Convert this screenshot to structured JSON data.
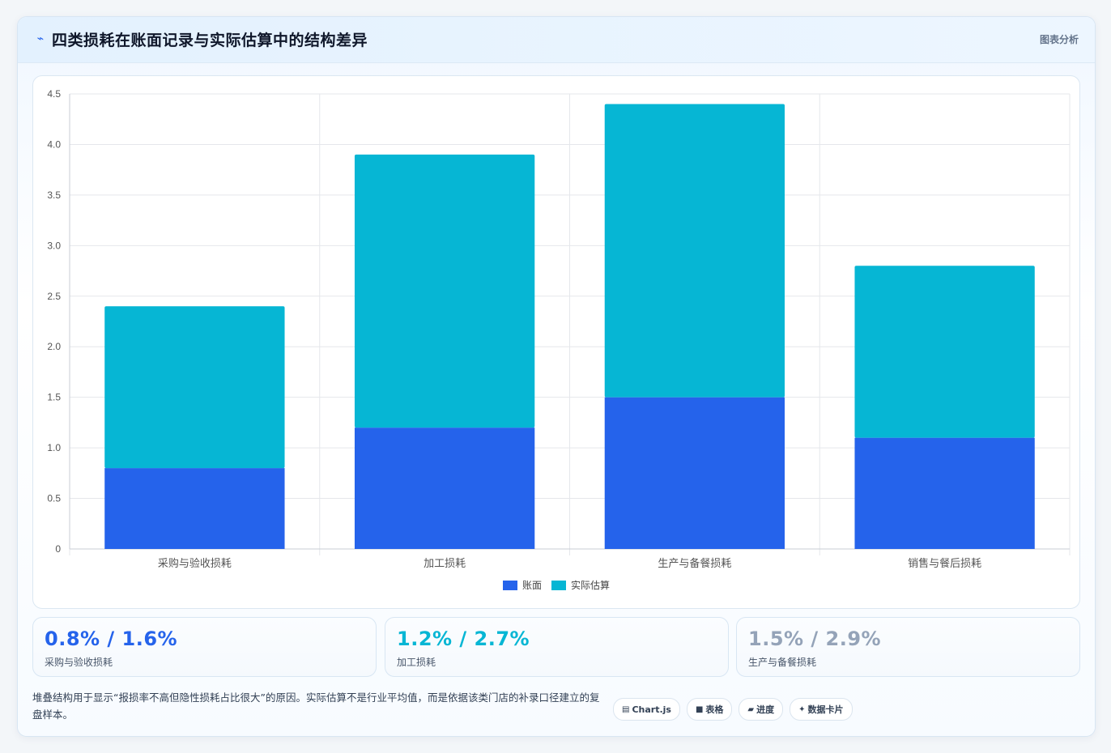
{
  "header": {
    "icon": "trend-icon",
    "title": "四类损耗在账面记录与实际估算中的结构差异",
    "tag": "图表分析"
  },
  "chart_data": {
    "type": "bar",
    "stacked": true,
    "categories": [
      "采购与验收损耗",
      "加工损耗",
      "生产与备餐损耗",
      "销售与餐后损耗"
    ],
    "series": [
      {
        "name": "账面",
        "values": [
          0.8,
          1.2,
          1.5,
          1.1
        ],
        "color": "#2563eb"
      },
      {
        "name": "实际估算",
        "values": [
          1.6,
          2.7,
          2.9,
          1.7
        ],
        "color": "#06b6d4"
      }
    ],
    "yticks": [
      "0",
      "0.5",
      "1.0",
      "1.5",
      "2.0",
      "2.5",
      "3.0",
      "3.5",
      "4.0",
      "4.5"
    ],
    "ylim": [
      0,
      4.5
    ],
    "grid": true,
    "legend_position": "bottom"
  },
  "stats": [
    {
      "value": "0.8% / 1.6%",
      "label": "采购与验收损耗",
      "color": "#2563eb"
    },
    {
      "value": "1.2% / 2.7%",
      "label": "加工损耗",
      "color": "#06b6d4"
    },
    {
      "value": "1.5% / 2.9%",
      "label": "生产与备餐损耗",
      "color": "#94a3b8"
    }
  ],
  "note": "堆叠结构用于显示“报损率不高但隐性损耗占比很大”的原因。实际估算不是行业平均值，而是依据该类门店的补录口径建立的复盘样本。",
  "chips": [
    {
      "icon": "chart-icon",
      "glyph": "▤",
      "label": "Chart.js"
    },
    {
      "icon": "table-icon",
      "glyph": "■",
      "label": "表格"
    },
    {
      "icon": "progress-icon",
      "glyph": "▰",
      "label": "进度"
    },
    {
      "icon": "sparkle-icon",
      "glyph": "✦",
      "label": "数据卡片"
    }
  ]
}
